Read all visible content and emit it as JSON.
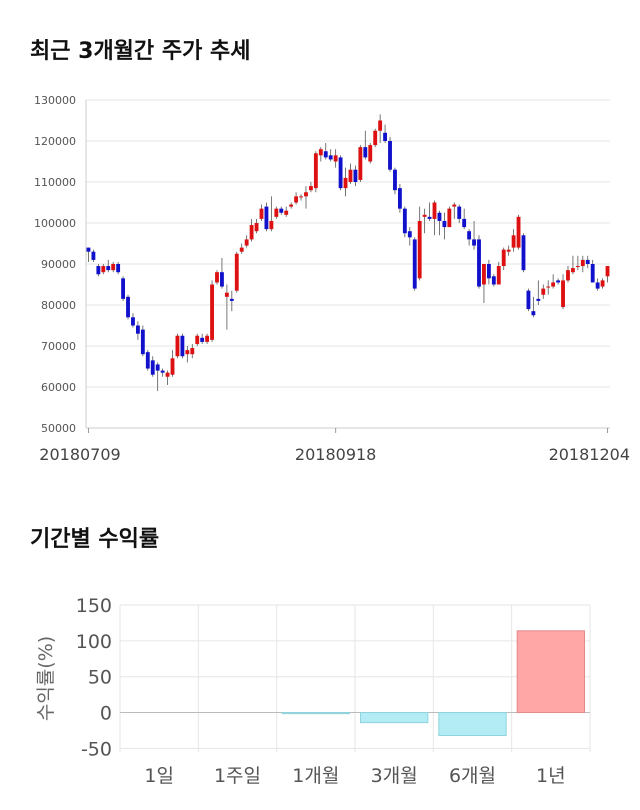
{
  "section1": {
    "title": "최근 3개월간 주가 추세"
  },
  "section2": {
    "title": "기간별 수익률"
  },
  "colors": {
    "up": "#dd1111",
    "down": "#1111cc",
    "wick": "#555555",
    "grid": "#e6e6e6",
    "bar_positive": "#ffa6a6",
    "bar_negative": "#b3ecf5"
  },
  "chart_data": [
    {
      "type": "candlestick",
      "title": "최근 3개월간 주가 추세",
      "y_ticks": [
        "50000",
        "60000",
        "70000",
        "80000",
        "90000",
        "100000",
        "110000",
        "120000",
        "130000"
      ],
      "ylim": [
        50000,
        130000
      ],
      "x_tick_labels": [
        "20180709",
        "20180918",
        "20181204"
      ],
      "x_tick_index": [
        0,
        50,
        105
      ],
      "n_days": 106,
      "candles": [
        [
          94000,
          93000,
          94000,
          90500
        ],
        [
          93000,
          91000,
          93500,
          90500
        ],
        [
          89500,
          87500,
          90000,
          87000
        ],
        [
          88000,
          89500,
          90000,
          87500
        ],
        [
          89500,
          88500,
          91000,
          88000
        ],
        [
          88500,
          90000,
          90500,
          88000
        ],
        [
          90000,
          88000,
          90500,
          87500
        ],
        [
          86500,
          81500,
          87000,
          81000
        ],
        [
          82000,
          77000,
          82500,
          76500
        ],
        [
          77000,
          75000,
          78000,
          74500
        ],
        [
          75000,
          73000,
          76000,
          71500
        ],
        [
          74000,
          68000,
          75000,
          67500
        ],
        [
          68500,
          64500,
          69000,
          64000
        ],
        [
          66500,
          63000,
          67500,
          62500
        ],
        [
          65500,
          64000,
          66000,
          59000
        ],
        [
          64000,
          63500,
          64500,
          62500
        ],
        [
          62500,
          63500,
          64000,
          60500
        ],
        [
          63000,
          67000,
          69000,
          62500
        ],
        [
          67500,
          72500,
          73000,
          67000
        ],
        [
          72500,
          67500,
          73000,
          67000
        ],
        [
          68000,
          69000,
          70000,
          66000
        ],
        [
          68000,
          69500,
          70500,
          67000
        ],
        [
          70500,
          72500,
          73000,
          70000
        ],
        [
          72000,
          71000,
          73000,
          70500
        ],
        [
          71000,
          72500,
          73000,
          70500
        ],
        [
          71500,
          85000,
          86000,
          71000
        ],
        [
          85500,
          88000,
          88500,
          85000
        ],
        [
          88000,
          84500,
          91500,
          84000
        ],
        [
          82000,
          83000,
          85000,
          74000
        ],
        [
          81500,
          81000,
          83500,
          78500
        ],
        [
          83500,
          92500,
          93000,
          83000
        ],
        [
          93000,
          94000,
          95000,
          92500
        ],
        [
          94500,
          96000,
          97000,
          94000
        ],
        [
          96000,
          99500,
          101000,
          95500
        ],
        [
          98000,
          100000,
          101000,
          97500
        ],
        [
          101000,
          103500,
          104500,
          100500
        ],
        [
          104000,
          98500,
          105000,
          98000
        ],
        [
          98500,
          100500,
          106500,
          98000
        ],
        [
          101500,
          103500,
          104000,
          101000
        ],
        [
          103500,
          102500,
          104000,
          102000
        ],
        [
          102000,
          103000,
          104000,
          101500
        ],
        [
          104000,
          104500,
          105000,
          103500
        ],
        [
          105000,
          106500,
          107500,
          104500
        ],
        [
          106500,
          106500,
          107000,
          105500
        ],
        [
          106500,
          107500,
          109000,
          103500
        ],
        [
          108000,
          109000,
          110000,
          107500
        ],
        [
          108500,
          117000,
          117500,
          107500
        ],
        [
          116500,
          118000,
          118500,
          115000
        ],
        [
          117500,
          116000,
          119500,
          115500
        ],
        [
          116500,
          115500,
          118000,
          115000
        ],
        [
          115000,
          116500,
          118000,
          113500
        ],
        [
          116000,
          108500,
          116500,
          108000
        ],
        [
          108500,
          111000,
          113500,
          106500
        ],
        [
          110000,
          113000,
          114500,
          109500
        ],
        [
          113000,
          110000,
          114000,
          109000
        ],
        [
          110500,
          118500,
          119000,
          110000
        ],
        [
          118500,
          116000,
          122500,
          115500
        ],
        [
          115000,
          119000,
          119500,
          114500
        ],
        [
          119000,
          122500,
          123000,
          118500
        ],
        [
          122500,
          125000,
          126500,
          119500
        ],
        [
          122000,
          120000,
          124000,
          119500
        ],
        [
          120000,
          113000,
          121000,
          112500
        ],
        [
          113000,
          108000,
          113500,
          107000
        ],
        [
          108500,
          103500,
          109500,
          102500
        ],
        [
          103500,
          97500,
          104000,
          96500
        ],
        [
          98000,
          96500,
          99000,
          94500
        ],
        [
          96000,
          84000,
          96500,
          83500
        ],
        [
          86500,
          100500,
          104000,
          86000
        ],
        [
          101500,
          102000,
          103500,
          97500
        ],
        [
          101500,
          101000,
          105000,
          100500
        ],
        [
          101000,
          105000,
          105500,
          97000
        ],
        [
          102500,
          100500,
          103000,
          97000
        ],
        [
          100500,
          99000,
          102500,
          96000
        ],
        [
          99000,
          103500,
          104000,
          99000
        ],
        [
          104000,
          104500,
          105000,
          101000
        ],
        [
          104000,
          101000,
          104500,
          100000
        ],
        [
          101000,
          99000,
          103500,
          98500
        ],
        [
          98000,
          96000,
          98500,
          94500
        ],
        [
          96000,
          94500,
          100500,
          93500
        ],
        [
          96000,
          84500,
          97000,
          84000
        ],
        [
          85000,
          90000,
          90000,
          80500
        ],
        [
          90000,
          86500,
          91000,
          85000
        ],
        [
          87000,
          85000,
          87500,
          84500
        ],
        [
          85000,
          89500,
          90500,
          85000
        ],
        [
          89500,
          93500,
          94000,
          88500
        ],
        [
          93000,
          93500,
          94500,
          92000
        ],
        [
          94000,
          97000,
          98500,
          93000
        ],
        [
          94000,
          101500,
          102000,
          93500
        ],
        [
          97000,
          88500,
          97500,
          88000
        ],
        [
          83500,
          79000,
          84000,
          78500
        ],
        [
          78500,
          77500,
          82000,
          77000
        ],
        [
          81500,
          81000,
          86000,
          80000
        ],
        [
          82500,
          84000,
          85000,
          81500
        ],
        [
          84500,
          84500,
          86000,
          82500
        ],
        [
          84500,
          85500,
          87500,
          84000
        ],
        [
          86000,
          85500,
          86500,
          85000
        ],
        [
          79500,
          86000,
          87500,
          79000
        ],
        [
          86000,
          88500,
          89500,
          85500
        ],
        [
          88000,
          89000,
          92000,
          87500
        ],
        [
          89500,
          89500,
          92000,
          88500
        ],
        [
          89500,
          91000,
          92000,
          88000
        ],
        [
          91000,
          90000,
          92000,
          89000
        ],
        [
          90000,
          85500,
          91000,
          85500
        ],
        [
          85500,
          84000,
          86500,
          83500
        ],
        [
          84500,
          86000,
          86500,
          84000
        ],
        [
          87000,
          89500,
          89500,
          85500
        ]
      ]
    },
    {
      "type": "bar",
      "title": "기간별 수익률",
      "ylabel": "수익률(%)",
      "ylim": [
        -55,
        150
      ],
      "y_ticks": [
        "150",
        "100",
        "50",
        "0",
        "-50"
      ],
      "categories": [
        "1일",
        "1주일",
        "1개월",
        "3개월",
        "6개월",
        "1년"
      ],
      "values": [
        0,
        0,
        -1.5,
        -14,
        -32,
        114
      ]
    }
  ]
}
